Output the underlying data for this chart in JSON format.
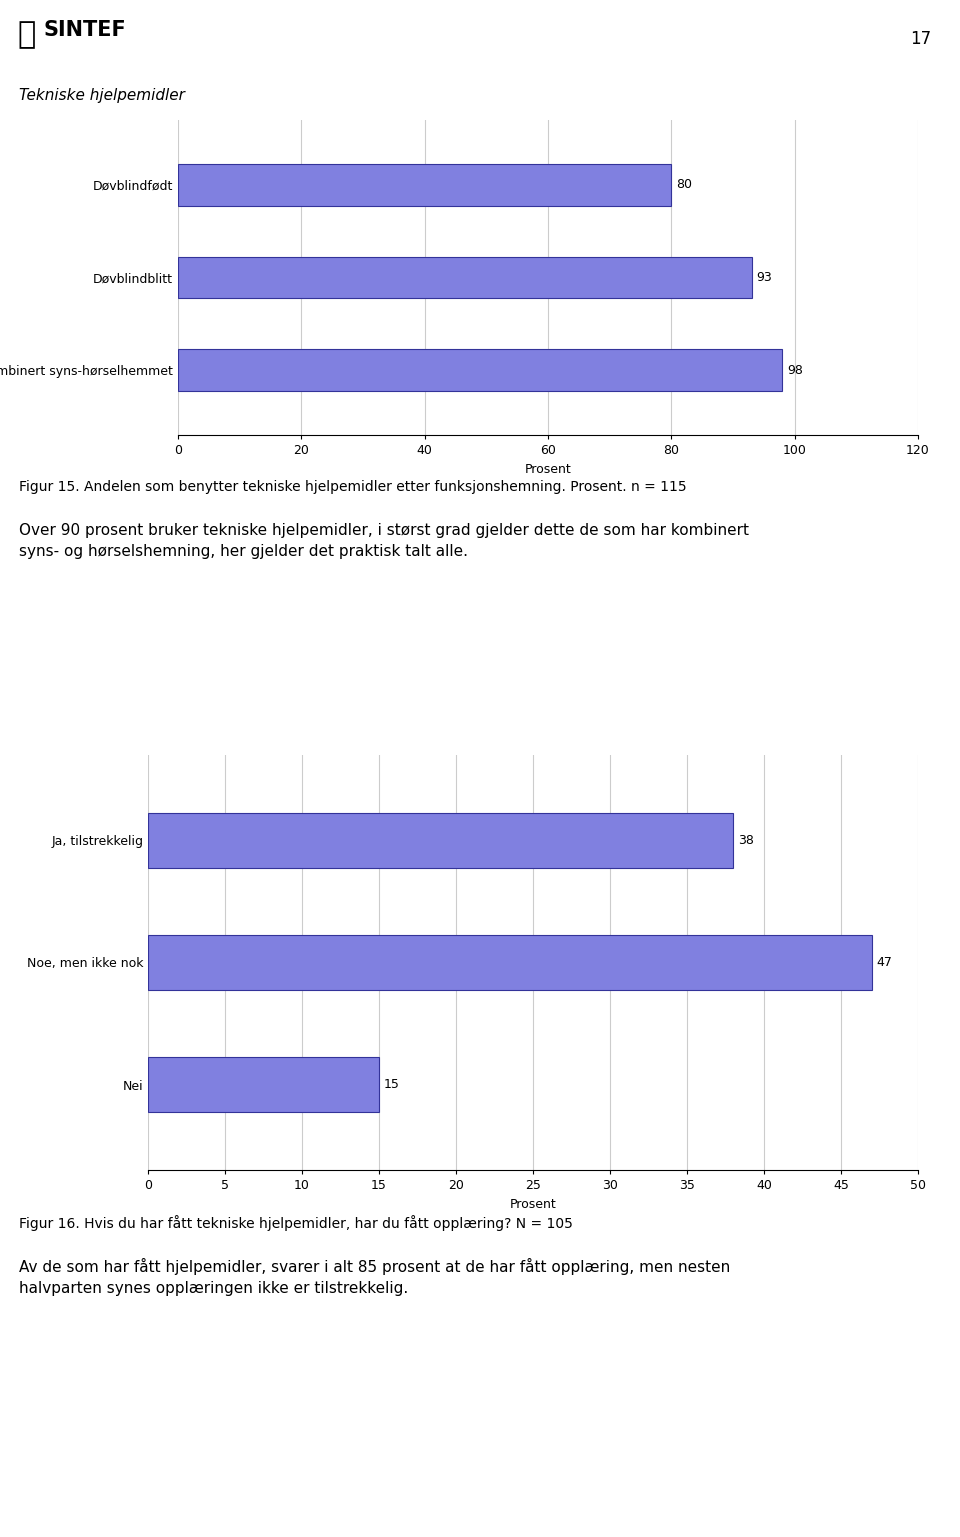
{
  "page_number": "17",
  "chart1": {
    "title": "Tekniske hjelpemidler",
    "categories": [
      "Døvblindfødt",
      "Døvblindblitt",
      "Kombinert syns-hørselhemmet"
    ],
    "values": [
      80,
      93,
      98
    ],
    "bar_color": "#8080e0",
    "bar_edgecolor": "#333399",
    "xlabel": "Prosent",
    "xlim": [
      0,
      120
    ],
    "xticks": [
      0,
      20,
      40,
      60,
      80,
      100,
      120
    ],
    "grid_color": "#cccccc",
    "fig_caption": "Figur 15. Andelen som benytter tekniske hjelpemidler etter funksjonshemning. Prosent. n = 115"
  },
  "body_text": "Over 90 prosent bruker tekniske hjelpemidler, i størst grad gjelder dette de som har kombinert\nsyns- og hørselshemning, her gjelder det praktisk talt alle.",
  "chart2": {
    "categories": [
      "Ja, tilstrekkelig",
      "Noe, men ikke nok",
      "Nei"
    ],
    "values": [
      38,
      47,
      15
    ],
    "bar_color": "#8080e0",
    "bar_edgecolor": "#333399",
    "xlabel": "Prosent",
    "xlim": [
      0,
      50
    ],
    "xticks": [
      0,
      5,
      10,
      15,
      20,
      25,
      30,
      35,
      40,
      45,
      50
    ],
    "grid_color": "#cccccc",
    "fig_caption": "Figur 16. Hvis du har fått tekniske hjelpemidler, har du fått opplæring? N = 105"
  },
  "body_text2": "Av de som har fått hjelpemidler, svarer i alt 85 prosent at de har fått opplæring, men nesten\nhalvparten synes opplæringen ikke er tilstrekkelig.",
  "bg_color": "#ffffff",
  "text_color": "#000000",
  "label_fontsize": 9,
  "tick_fontsize": 9,
  "value_fontsize": 9,
  "caption_fontsize": 10,
  "body_fontsize": 11,
  "title_fontsize": 11
}
